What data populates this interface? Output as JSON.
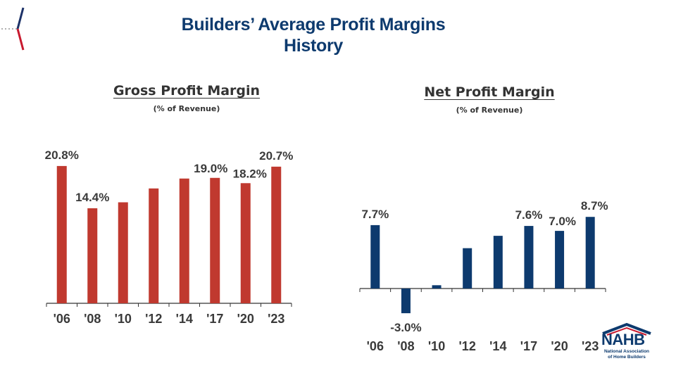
{
  "title_line1": "Builders’ Average Profit Margins",
  "title_line2": "History",
  "colors": {
    "title": "#0d3a6e",
    "gross_bar": "#c0392f",
    "net_bar": "#0d3a6e",
    "text": "#3a3a3a",
    "axis": "#333333"
  },
  "logo": {
    "name": "NAHB",
    "subtitle_line1": "National Association",
    "subtitle_line2": "of Home Builders"
  },
  "chart_data": [
    {
      "type": "bar",
      "title": "Gross Profit Margin",
      "subtitle": "(% of Revenue)",
      "xlabel": "",
      "ylabel": "",
      "categories": [
        "'06",
        "'08",
        "'10",
        "'12",
        "'14",
        "'17",
        "'20",
        "'23"
      ],
      "values": [
        20.8,
        14.4,
        15.3,
        17.4,
        18.9,
        19.0,
        18.2,
        20.7
      ],
      "labels": [
        "20.8%",
        "14.4%",
        "",
        "",
        "",
        "19.0%",
        "18.2%",
        "20.7%"
      ],
      "ylim": [
        0,
        22
      ],
      "grid": false,
      "legend": "none"
    },
    {
      "type": "bar",
      "title": "Net Profit Margin",
      "subtitle": "(% of Revenue)",
      "xlabel": "",
      "ylabel": "",
      "categories": [
        "'06",
        "'08",
        "'10",
        "'12",
        "'14",
        "'17",
        "'20",
        "'23"
      ],
      "values": [
        7.7,
        -3.0,
        0.4,
        4.9,
        6.4,
        7.6,
        7.0,
        8.7
      ],
      "labels": [
        "7.7%",
        "-3.0%",
        "",
        "",
        "",
        "7.6%",
        "7.0%",
        "8.7%"
      ],
      "ylim": [
        -3.5,
        9.5
      ],
      "grid": false,
      "legend": "none"
    }
  ]
}
